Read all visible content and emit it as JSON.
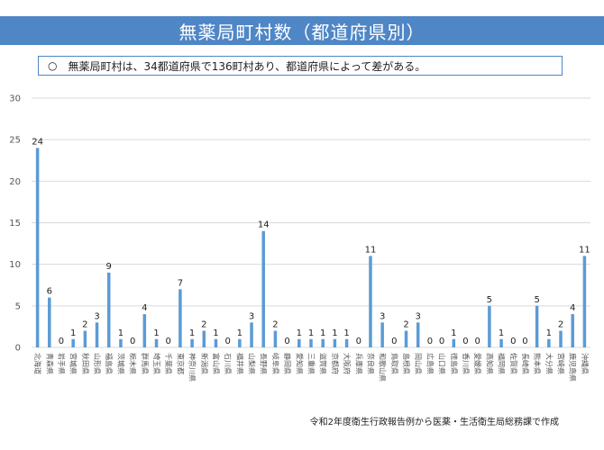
{
  "page": {
    "title": "無薬局町村数（都道府県別）",
    "note_bullet": "○",
    "note": "無薬局町村は、34都道府県で136町村あり、都道府県によって差がある。",
    "source": "令和2年度衛生行政報告例から医薬・生活衛生局総務課で作成"
  },
  "colors": {
    "banner": "#4f86c6",
    "bar": "#5b9bd5",
    "grid": "#d9d9d9"
  },
  "chart_data": {
    "type": "bar",
    "title": "",
    "xlabel": "",
    "ylabel": "",
    "ylim": [
      0,
      30
    ],
    "yticks": [
      0,
      5,
      10,
      15,
      20,
      25,
      30
    ],
    "grid": true,
    "categories": [
      "北海道",
      "青森県",
      "岩手県",
      "宮城県",
      "秋田県",
      "山形県",
      "福島県",
      "茨城県",
      "栃木県",
      "群馬県",
      "埼玉県",
      "千葉県",
      "東京都",
      "神奈川県",
      "新潟県",
      "富山県",
      "石川県",
      "福井県",
      "山梨県",
      "長野県",
      "岐阜県",
      "静岡県",
      "愛知県",
      "三重県",
      "滋賀県",
      "京都府",
      "大阪府",
      "兵庫県",
      "奈良県",
      "和歌山県",
      "鳥取県",
      "島根県",
      "岡山県",
      "広島県",
      "山口県",
      "徳島県",
      "香川県",
      "愛媛県",
      "高知県",
      "福岡県",
      "佐賀県",
      "長崎県",
      "熊本県",
      "大分県",
      "宮崎県",
      "鹿児島県",
      "沖縄県"
    ],
    "values": [
      24,
      6,
      0,
      1,
      2,
      3,
      9,
      1,
      0,
      4,
      1,
      0,
      7,
      1,
      2,
      1,
      0,
      1,
      3,
      14,
      2,
      0,
      1,
      1,
      1,
      1,
      1,
      0,
      11,
      3,
      0,
      2,
      3,
      0,
      0,
      1,
      0,
      0,
      5,
      1,
      0,
      0,
      5,
      1,
      2,
      4,
      11
    ]
  }
}
